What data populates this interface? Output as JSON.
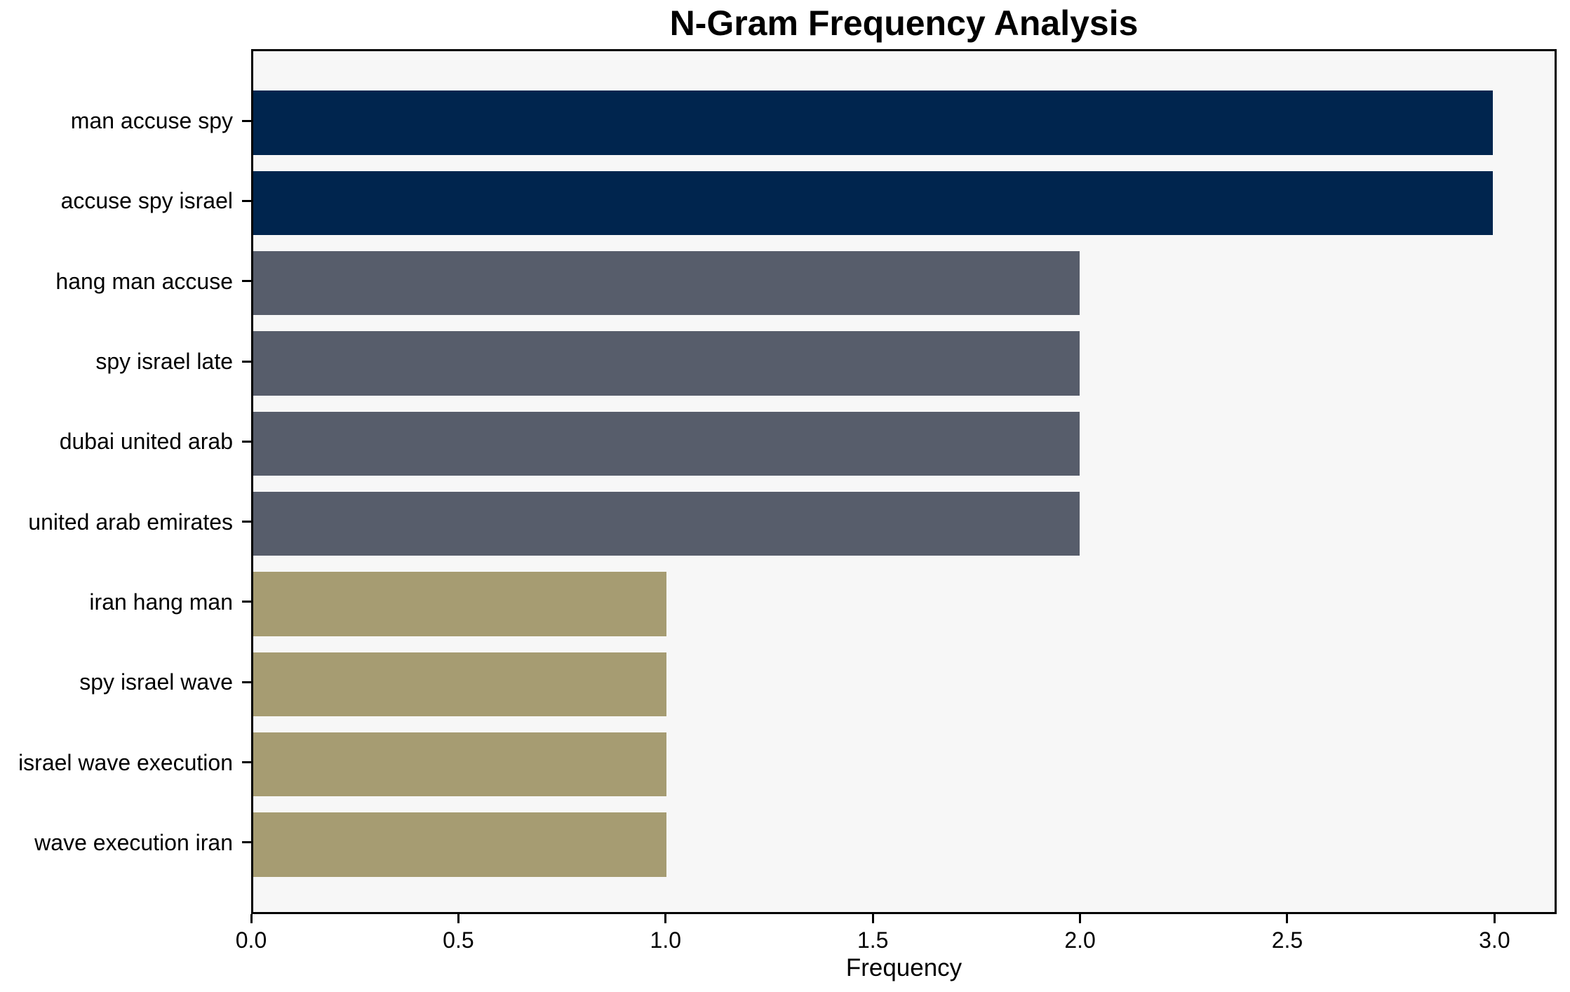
{
  "chart_data": {
    "type": "bar",
    "orientation": "horizontal",
    "title": "N-Gram Frequency Analysis",
    "xlabel": "Frequency",
    "ylabel": "",
    "categories": [
      "man accuse spy",
      "accuse spy israel",
      "hang man accuse",
      "spy israel late",
      "dubai united arab",
      "united arab emirates",
      "iran hang man",
      "spy israel wave",
      "israel wave execution",
      "wave execution iran"
    ],
    "values": [
      3,
      3,
      2,
      2,
      2,
      2,
      1,
      1,
      1,
      1
    ],
    "bar_colors": [
      "#00254e",
      "#00254e",
      "#575d6b",
      "#575d6b",
      "#575d6b",
      "#575d6b",
      "#a69c72",
      "#a69c72",
      "#a69c72",
      "#a69c72"
    ],
    "xlim": [
      0,
      3.15
    ],
    "xticks": [
      "0.0",
      "0.5",
      "1.0",
      "1.5",
      "2.0",
      "2.5",
      "3.0"
    ],
    "xtick_values": [
      0,
      0.5,
      1,
      1.5,
      2,
      2.5,
      3
    ],
    "grid": false,
    "legend": "none",
    "bar_height_ratio": 0.8,
    "colors": {
      "freq_3": "#00254e",
      "freq_2": "#575d6b",
      "freq_1": "#a69c72",
      "plot_background": "#f7f7f7",
      "figure_background": "#ffffff",
      "spine": "#000000",
      "text": "#000000"
    }
  }
}
